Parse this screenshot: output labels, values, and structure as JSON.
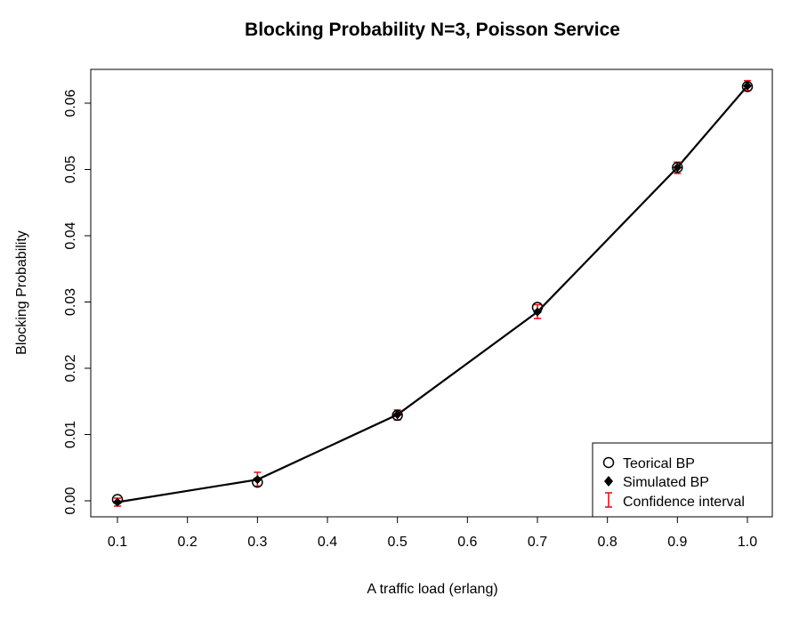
{
  "chart_data": {
    "type": "line",
    "title": "Blocking Probability N=3, Poisson Service",
    "xlabel": "A traffic load (erlang)",
    "ylabel": "Blocking Probability",
    "xlim": [
      0.1,
      1.0
    ],
    "ylim": [
      0.0,
      0.06
    ],
    "x_ticks": [
      "0.1",
      "0.2",
      "0.3",
      "0.4",
      "0.5",
      "0.6",
      "0.7",
      "0.8",
      "0.9",
      "1.0"
    ],
    "y_ticks": [
      "0.00",
      "0.01",
      "0.02",
      "0.03",
      "0.04",
      "0.05",
      "0.06"
    ],
    "grid": false,
    "legend_position": "bottom-right",
    "x": [
      0.1,
      0.3,
      0.5,
      0.7,
      0.9,
      1.0
    ],
    "series": [
      {
        "name": "Teorical BP",
        "marker": "open-circle",
        "values": [
          0.0002,
          0.0028,
          0.0129,
          0.0292,
          0.0503,
          0.0625
        ]
      },
      {
        "name": "Simulated BP",
        "marker": "filled-diamond",
        "values": [
          -0.0002,
          0.0032,
          0.013,
          0.0285,
          0.0503,
          0.0626
        ]
      },
      {
        "name": "Confidence interval",
        "marker": "error-bar",
        "lower": [
          -0.0008,
          0.0022,
          0.0122,
          0.0275,
          0.0494,
          0.0619
        ],
        "upper": [
          0.0004,
          0.0043,
          0.0137,
          0.0296,
          0.0511,
          0.0634
        ]
      }
    ],
    "colors": {
      "line": "#000000",
      "confidence_interval": "#e8141b",
      "axes": "#000000"
    }
  }
}
